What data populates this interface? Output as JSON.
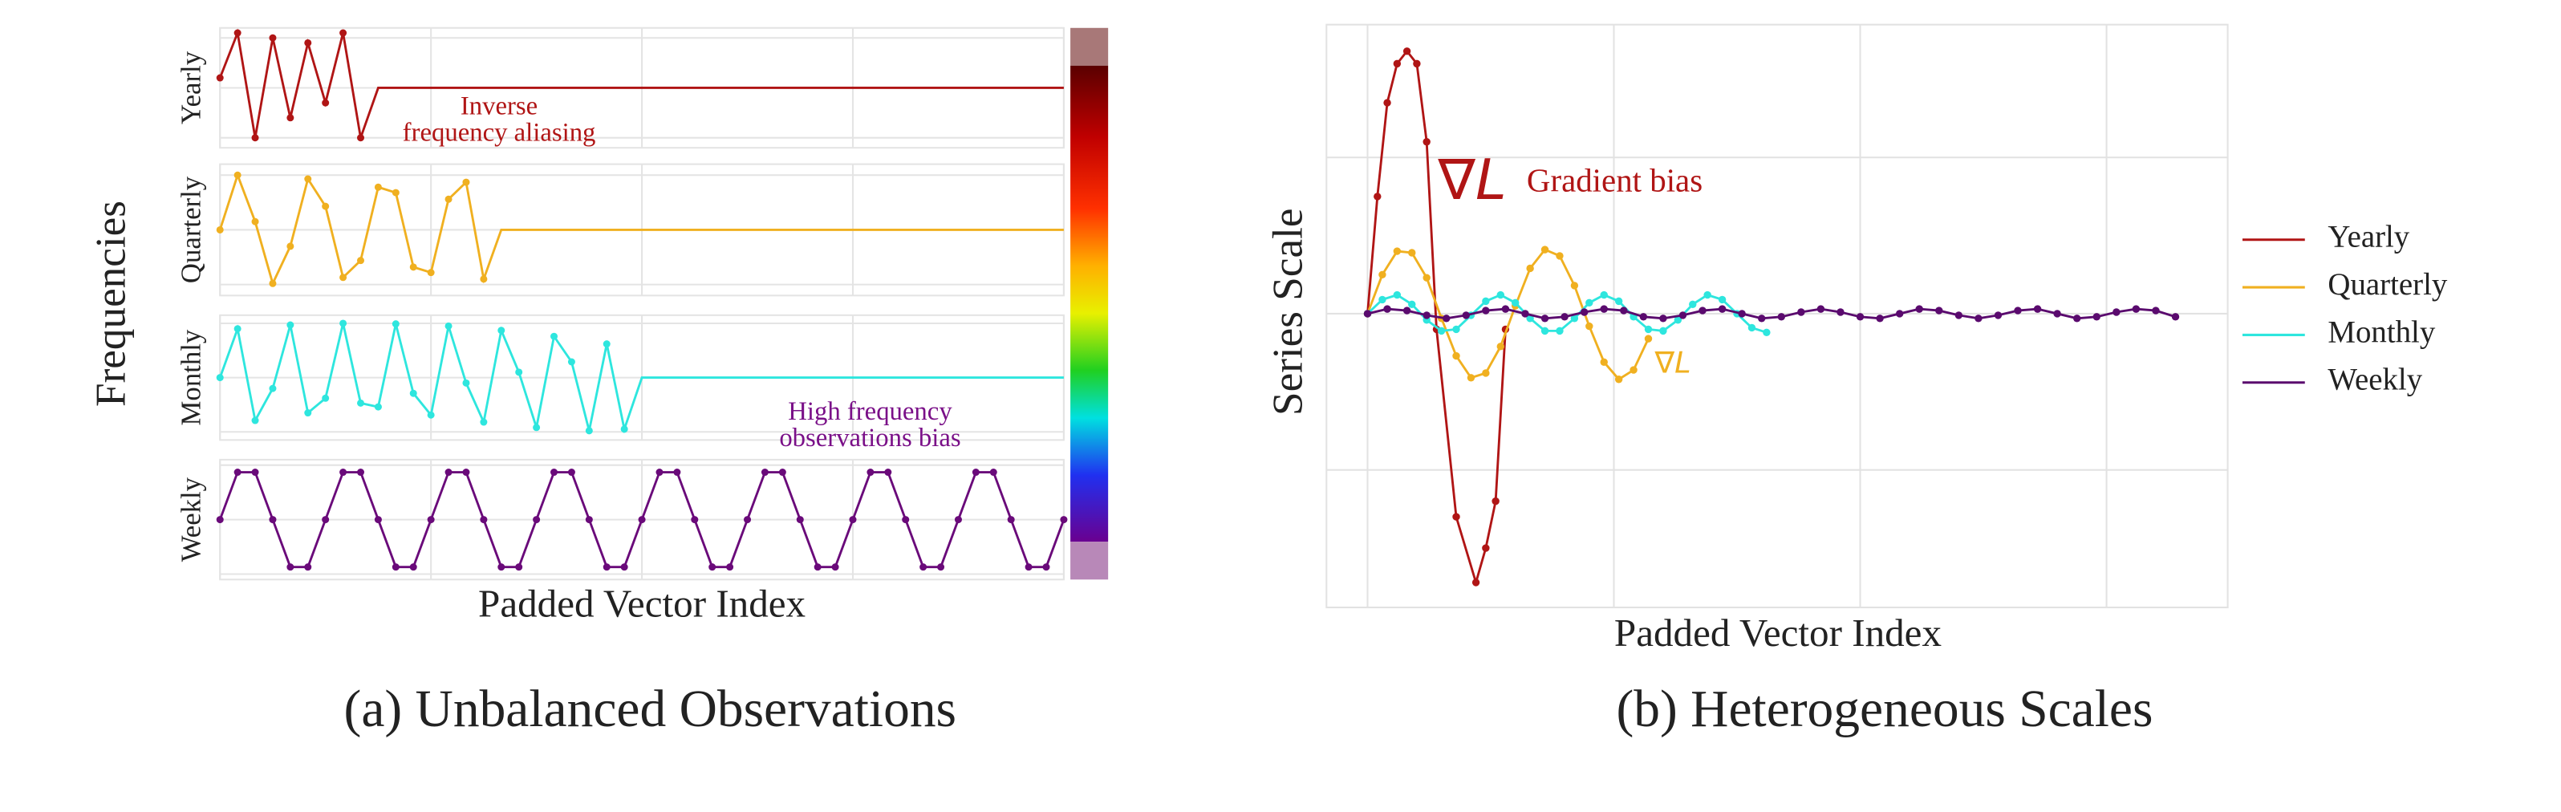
{
  "chart_data": [
    {
      "type": "line",
      "caption": "(a) Unbalanced Observations",
      "xlabel": "Padded Vector Index",
      "ylabel": "Frequencies",
      "xlim": [
        0,
        48
      ],
      "xticks": [
        0,
        12,
        24,
        36,
        48
      ],
      "grid": true,
      "panels": [
        {
          "name": "Yearly",
          "color": "#b01515",
          "ylim": [
            -1.2,
            1.2
          ],
          "yticks": [
            -1,
            0,
            1
          ],
          "values": [
            0.2,
            1.1,
            -1.0,
            1.0,
            -0.6,
            0.9,
            -0.3,
            1.1,
            -1.0,
            0,
            0,
            0,
            0,
            0,
            0,
            0,
            0,
            0,
            0,
            0,
            0,
            0,
            0,
            0,
            0,
            0,
            0,
            0,
            0,
            0,
            0,
            0,
            0,
            0,
            0,
            0,
            0,
            0,
            0,
            0,
            0,
            0,
            0,
            0,
            0,
            0,
            0,
            0,
            0
          ]
        },
        {
          "name": "Quarterly",
          "color": "#f0b020",
          "ylim": [
            -1.2,
            1.2
          ],
          "yticks": [
            -1,
            0,
            1
          ],
          "values": [
            0,
            1,
            0.15,
            -0.98,
            -0.3,
            0.93,
            0.43,
            -0.87,
            -0.56,
            0.78,
            0.68,
            -0.68,
            -0.78,
            0.56,
            0.87,
            -0.9,
            0,
            0,
            0,
            0,
            0,
            0,
            0,
            0,
            0,
            0,
            0,
            0,
            0,
            0,
            0,
            0,
            0,
            0,
            0,
            0,
            0,
            0,
            0,
            0,
            0,
            0,
            0,
            0,
            0,
            0,
            0,
            0,
            0
          ]
        },
        {
          "name": "Monthly",
          "color": "#2ee6de",
          "ylim": [
            -1.15,
            1.15
          ],
          "yticks": [
            -1,
            0,
            1
          ],
          "values": [
            0,
            0.9,
            -0.79,
            -0.2,
            0.97,
            -0.65,
            -0.38,
            1,
            -0.47,
            -0.54,
            0.99,
            -0.29,
            -0.69,
            0.95,
            -0.1,
            -0.82,
            0.87,
            0.1,
            -0.92,
            0.76,
            0.29,
            -0.98,
            0.62,
            -0.95,
            0,
            0,
            0,
            0,
            0,
            0,
            0,
            0,
            0,
            0,
            0,
            0,
            0,
            0,
            0,
            0,
            0,
            0,
            0,
            0,
            0,
            0,
            0,
            0,
            0
          ]
        },
        {
          "name": "Weekly",
          "color": "#6a0a7a",
          "ylim": [
            -1.1,
            1.1
          ],
          "yticks": [
            -1,
            0,
            1
          ],
          "values": [
            0,
            0.87,
            0.87,
            0,
            -0.87,
            -0.87,
            0,
            0.87,
            0.87,
            0,
            -0.87,
            -0.87,
            0,
            0.87,
            0.87,
            0,
            -0.87,
            -0.87,
            0,
            0.87,
            0.87,
            0,
            -0.87,
            -0.87,
            0,
            0.87,
            0.87,
            0,
            -0.87,
            -0.87,
            0,
            0.87,
            0.87,
            0,
            -0.87,
            -0.87,
            0,
            0.87,
            0.87,
            0,
            -0.87,
            -0.87,
            0,
            0.87,
            0.87,
            0,
            -0.87,
            -0.87,
            0
          ]
        }
      ],
      "annotations": [
        {
          "text": [
            "Inverse",
            "frequency aliasing"
          ],
          "color": "#b01515"
        },
        {
          "text": [
            "High frequency",
            "observations bias"
          ],
          "color": "#7a1088"
        }
      ]
    },
    {
      "type": "line",
      "caption": "(b) Heterogeneous Scales",
      "xlabel": "Padded Vector Index",
      "ylabel": "Series Scale",
      "xlim": [
        -4.17,
        87.3
      ],
      "xticks": [
        0,
        25,
        50,
        75
      ],
      "ylim": [
        -1.88,
        1.85
      ],
      "yticks": [
        -1,
        0,
        1
      ],
      "grid": true,
      "legend": "right",
      "series": [
        {
          "name": "Yearly",
          "color": "#b01515",
          "x": [
            0,
            1,
            2,
            3,
            4,
            5,
            6,
            7,
            9,
            11,
            12,
            13,
            14
          ],
          "values": [
            0,
            0.75,
            1.35,
            1.6,
            1.68,
            1.6,
            1.1,
            -0.1,
            -1.3,
            -1.72,
            -1.5,
            -1.2,
            -0.1
          ]
        },
        {
          "name": "Quarterly",
          "color": "#f0b020",
          "x": [
            0,
            1.5,
            3,
            4.5,
            6,
            7.5,
            9,
            10.5,
            12,
            13.5,
            15,
            16.5,
            18,
            19.5,
            21,
            22.5,
            24,
            25.5,
            27,
            28.5
          ],
          "values": [
            0,
            0.25,
            0.4,
            0.39,
            0.23,
            -0.03,
            -0.27,
            -0.41,
            -0.38,
            -0.21,
            0.05,
            0.29,
            0.41,
            0.37,
            0.18,
            -0.08,
            -0.31,
            -0.42,
            -0.36,
            -0.16
          ]
        },
        {
          "name": "Monthly",
          "color": "#2ee6de",
          "x": [
            0,
            1.5,
            3,
            4.5,
            6,
            7.5,
            9,
            10.5,
            12,
            13.5,
            15,
            16.5,
            18,
            19.5,
            21,
            22.5,
            24,
            25.5,
            27,
            28.5,
            30,
            31.5,
            33,
            34.5,
            36,
            37.5,
            39,
            40.5
          ],
          "values": [
            0,
            0.09,
            0.12,
            0.06,
            -0.04,
            -0.11,
            -0.1,
            -0.01,
            0.08,
            0.12,
            0.07,
            -0.03,
            -0.11,
            -0.11,
            -0.03,
            0.07,
            0.12,
            0.08,
            -0.02,
            -0.1,
            -0.11,
            -0.04,
            0.06,
            0.12,
            0.09,
            0,
            -0.09,
            -0.12
          ]
        },
        {
          "name": "Weekly",
          "color": "#5a0a6e",
          "x": [
            0,
            2,
            4,
            6,
            8,
            10,
            12,
            14,
            16,
            18,
            20,
            22,
            24,
            26,
            28,
            30,
            32,
            34,
            36,
            38,
            40,
            42,
            44,
            46,
            48,
            50,
            52,
            54,
            56,
            58,
            60,
            62,
            64,
            66,
            68,
            70,
            72,
            74,
            76,
            78,
            80,
            82
          ],
          "values": [
            0,
            0.03,
            0.02,
            -0.01,
            -0.03,
            -0.01,
            0.02,
            0.03,
            0,
            -0.03,
            -0.02,
            0.01,
            0.03,
            0.02,
            -0.02,
            -0.03,
            -0.01,
            0.02,
            0.03,
            0,
            -0.03,
            -0.02,
            0.01,
            0.03,
            0.01,
            -0.02,
            -0.03,
            0,
            0.03,
            0.02,
            -0.01,
            -0.03,
            -0.01,
            0.02,
            0.03,
            0,
            -0.03,
            -0.02,
            0.01,
            0.03,
            0.02,
            -0.02
          ]
        }
      ],
      "annotations": [
        {
          "text": "∇L",
          "color": "#b01515"
        },
        {
          "text": "Gradient bias",
          "color": "#b01515"
        },
        {
          "text": "∇L",
          "color": "#f0b020"
        }
      ]
    }
  ]
}
